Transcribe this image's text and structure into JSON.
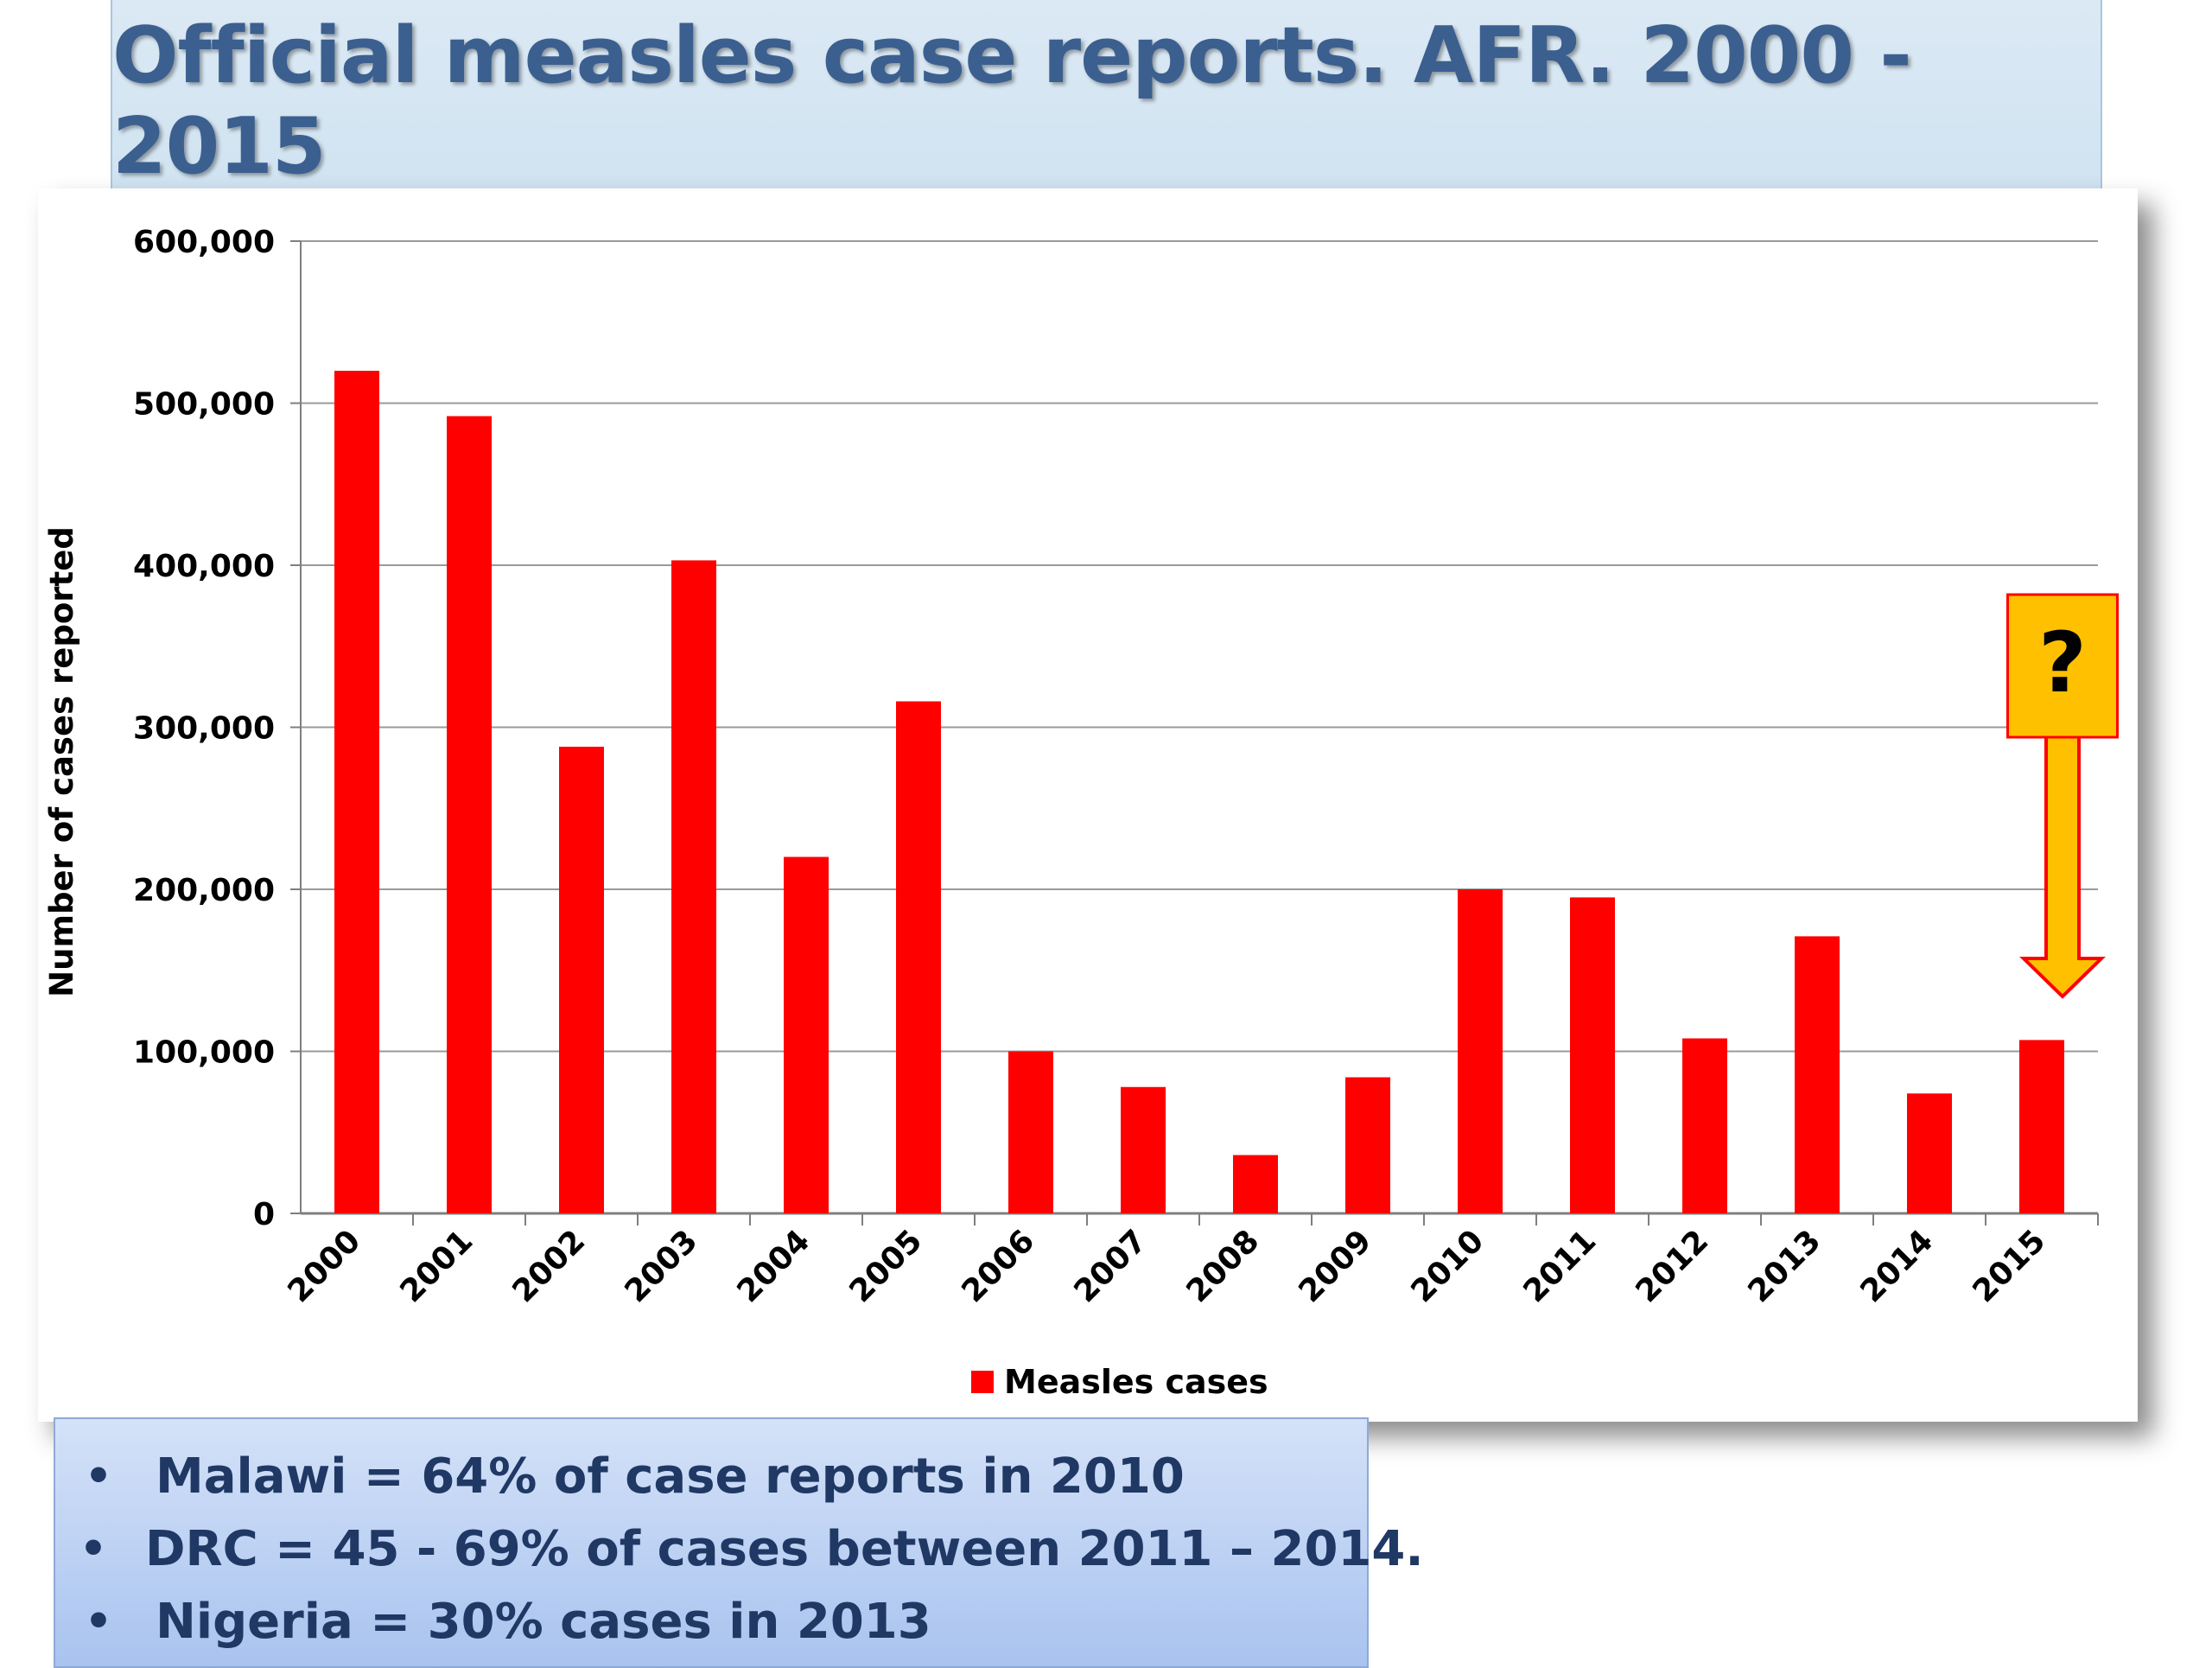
{
  "title": "Official measles case reports. AFR. 2000 - 2015",
  "chart_data": {
    "type": "bar",
    "categories": [
      "2000",
      "2001",
      "2002",
      "2003",
      "2004",
      "2005",
      "2006",
      "2007",
      "2008",
      "2009",
      "2010",
      "2011",
      "2012",
      "2013",
      "2014",
      "2015"
    ],
    "series": [
      {
        "name": "Measles cases",
        "values": [
          520000,
          492000,
          288000,
          403000,
          220000,
          316000,
          100000,
          78000,
          36000,
          84000,
          200000,
          195000,
          108000,
          171000,
          74000,
          107000
        ]
      }
    ],
    "ylabel": "Number of cases reported",
    "xlabel": "",
    "ylim": [
      0,
      600000
    ],
    "yticks": [
      0,
      100000,
      200000,
      300000,
      400000,
      500000,
      600000
    ],
    "ytick_labels": [
      "0",
      "100,000",
      "200,000",
      "300,000",
      "400,000",
      "500,000",
      "600,000"
    ],
    "grid": true,
    "legend": "bottom",
    "bar_color": "#ff0000",
    "annotation": {
      "text": "?",
      "category": "2015",
      "box_color": "#ffc000",
      "border_color": "#ff0000"
    }
  },
  "notes": [
    "Malawi = 64% of case reports in 2010",
    "DRC  = 45 - 69% of cases between 2011 – 2014.",
    "Nigeria = 30% cases in 2013"
  ],
  "bullet_char": "•"
}
